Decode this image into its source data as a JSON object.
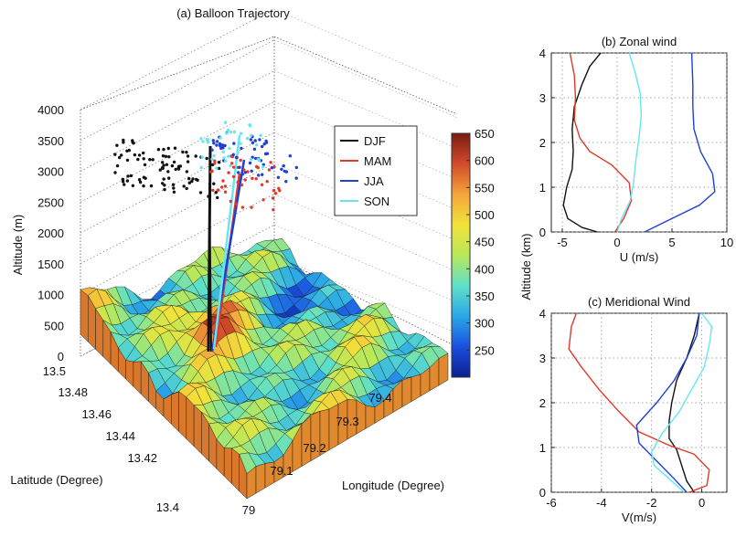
{
  "colors": {
    "DJF": "#111111",
    "MAM": "#e03a2a",
    "JJA": "#1f3fd6",
    "SON": "#66e6f2",
    "colormap": [
      "#0b1f8f",
      "#1a4fe0",
      "#2aa8e8",
      "#5fe0c8",
      "#b8e85a",
      "#f2e23a",
      "#f4a53a",
      "#d24a2a",
      "#7a1a12"
    ]
  },
  "chart_data": [
    {
      "type": "scatter3d",
      "title": "(a) Balloon Trajectory",
      "xlabel": "Longitude (Degree)",
      "ylabel": "Latitude (Degree)",
      "zlabel": "Altitude (m)",
      "xticks": [
        "79",
        "79.1",
        "79.2",
        "79.3",
        "79.4"
      ],
      "yticks": [
        "13.4",
        "13.42",
        "13.44",
        "13.46",
        "13.48",
        "13.5"
      ],
      "zticks": [
        "0",
        "500",
        "1000",
        "1500",
        "2000",
        "2500",
        "3000",
        "3500",
        "4000"
      ],
      "zlim": [
        0,
        4000
      ],
      "grid": true,
      "legend_position": "top-right",
      "series": [
        {
          "name": "DJF",
          "color_key": "DJF"
        },
        {
          "name": "MAM",
          "color_key": "MAM"
        },
        {
          "name": "JJA",
          "color_key": "JJA"
        },
        {
          "name": "SON",
          "color_key": "SON"
        }
      ],
      "colorbar": {
        "range": [
          200,
          650
        ],
        "ticks": [
          "650",
          "600",
          "550",
          "500",
          "450",
          "400",
          "350",
          "300",
          "250"
        ]
      }
    },
    {
      "type": "line",
      "title": "(b) Zonal wind",
      "xlabel": "U (m/s)",
      "ylabel": "Altitude (km)",
      "xlim": [
        -6,
        10
      ],
      "ylim": [
        0,
        4
      ],
      "xticks": [
        "-5",
        "0",
        "5",
        "10"
      ],
      "yticks": [
        "0",
        "1",
        "2",
        "3",
        "4"
      ],
      "grid": true,
      "series": [
        {
          "name": "DJF",
          "color_key": "DJF",
          "points": [
            [
              -1.8,
              0
            ],
            [
              -3.2,
              0.1
            ],
            [
              -4.5,
              0.3
            ],
            [
              -4.9,
              0.6
            ],
            [
              -4.6,
              1.0
            ],
            [
              -4.1,
              1.4
            ],
            [
              -4.0,
              1.8
            ],
            [
              -4.1,
              2.3
            ],
            [
              -3.9,
              2.8
            ],
            [
              -3.2,
              3.3
            ],
            [
              -2.5,
              3.7
            ],
            [
              -1.5,
              4.0
            ]
          ]
        },
        {
          "name": "MAM",
          "color_key": "MAM",
          "points": [
            [
              -0.2,
              0
            ],
            [
              0.6,
              0.3
            ],
            [
              1.3,
              0.7
            ],
            [
              1.1,
              1.1
            ],
            [
              -0.5,
              1.5
            ],
            [
              -2.5,
              1.8
            ],
            [
              -3.4,
              2.1
            ],
            [
              -3.9,
              2.5
            ],
            [
              -3.8,
              3.0
            ],
            [
              -3.9,
              3.5
            ],
            [
              -4.3,
              4.0
            ]
          ]
        },
        {
          "name": "JJA",
          "color_key": "JJA",
          "points": [
            [
              2.5,
              0
            ],
            [
              5.0,
              0.3
            ],
            [
              7.5,
              0.6
            ],
            [
              8.9,
              0.9
            ],
            [
              8.7,
              1.3
            ],
            [
              7.6,
              1.8
            ],
            [
              7.0,
              2.3
            ],
            [
              6.9,
              2.8
            ],
            [
              6.9,
              3.3
            ],
            [
              6.8,
              4.0
            ]
          ]
        },
        {
          "name": "SON",
          "color_key": "SON",
          "points": [
            [
              0.0,
              0
            ],
            [
              0.4,
              0.3
            ],
            [
              1.2,
              0.7
            ],
            [
              1.5,
              1.1
            ],
            [
              1.7,
              1.6
            ],
            [
              2.0,
              2.1
            ],
            [
              2.2,
              2.6
            ],
            [
              2.1,
              3.1
            ],
            [
              1.6,
              3.6
            ],
            [
              1.1,
              4.0
            ]
          ]
        }
      ]
    },
    {
      "type": "line",
      "title": "(c) Meridional Wind",
      "xlabel": "V(m/s)",
      "ylabel": "",
      "xlim": [
        -6,
        1
      ],
      "ylim": [
        0,
        4
      ],
      "xticks": [
        "-6",
        "-4",
        "-2",
        "0"
      ],
      "yticks": [
        "0",
        "1",
        "2",
        "3",
        "4"
      ],
      "grid": true,
      "series": [
        {
          "name": "DJF",
          "color_key": "DJF",
          "points": [
            [
              -0.3,
              0
            ],
            [
              -0.6,
              0.25
            ],
            [
              -0.8,
              0.6
            ],
            [
              -1.0,
              0.95
            ],
            [
              -1.3,
              1.2
            ],
            [
              -1.3,
              1.6
            ],
            [
              -1.2,
              2.0
            ],
            [
              -1.0,
              2.5
            ],
            [
              -0.6,
              3.0
            ],
            [
              -0.3,
              3.5
            ],
            [
              -0.1,
              4.0
            ]
          ]
        },
        {
          "name": "MAM",
          "color_key": "MAM",
          "points": [
            [
              -0.5,
              0
            ],
            [
              0.2,
              0.15
            ],
            [
              0.3,
              0.5
            ],
            [
              -0.3,
              0.85
            ],
            [
              -1.3,
              1.05
            ],
            [
              -2.5,
              1.35
            ],
            [
              -3.3,
              1.8
            ],
            [
              -4.1,
              2.3
            ],
            [
              -4.8,
              2.8
            ],
            [
              -5.3,
              3.2
            ],
            [
              -5.2,
              3.7
            ],
            [
              -5.0,
              4.0
            ]
          ]
        },
        {
          "name": "JJA",
          "color_key": "JJA",
          "points": [
            [
              -0.6,
              0
            ],
            [
              -1.1,
              0.3
            ],
            [
              -1.8,
              0.7
            ],
            [
              -2.5,
              1.1
            ],
            [
              -2.6,
              1.5
            ],
            [
              -1.8,
              2.0
            ],
            [
              -1.1,
              2.5
            ],
            [
              -0.6,
              3.0
            ],
            [
              -0.2,
              3.5
            ],
            [
              -0.1,
              4.0
            ]
          ]
        },
        {
          "name": "SON",
          "color_key": "SON",
          "points": [
            [
              -0.7,
              0
            ],
            [
              -1.3,
              0.3
            ],
            [
              -1.9,
              0.6
            ],
            [
              -2.0,
              0.9
            ],
            [
              -1.6,
              1.3
            ],
            [
              -0.9,
              1.8
            ],
            [
              -0.4,
              2.3
            ],
            [
              0.1,
              2.8
            ],
            [
              0.3,
              3.3
            ],
            [
              0.4,
              3.7
            ],
            [
              0.0,
              4.0
            ]
          ]
        }
      ]
    }
  ]
}
